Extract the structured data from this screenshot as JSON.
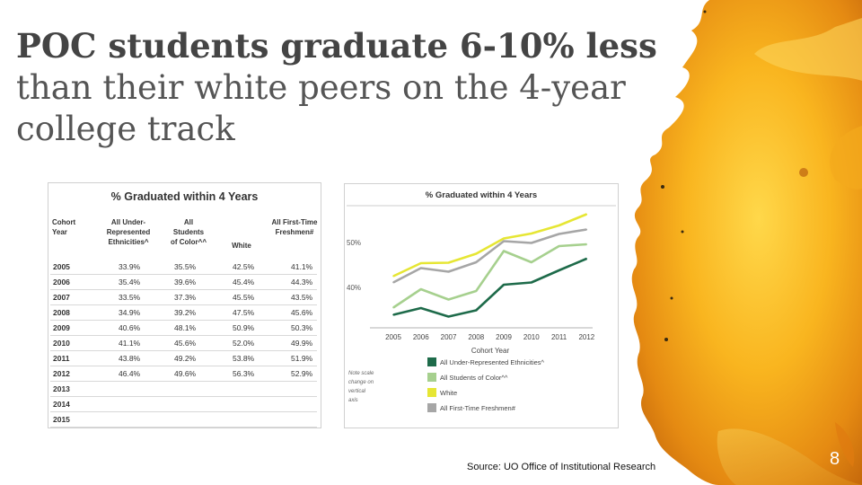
{
  "slide": {
    "title_bold": "POC students graduate 6-10% less",
    "title_rest": " than their white peers on the 4-year college track",
    "source": "Source: UO Office of Institutional Research",
    "page_number": "8"
  },
  "table": {
    "title": "% Graduated within 4 Years",
    "headers": [
      "Cohort Year",
      "All Under-Represented Ethnicities^",
      "All Students of Color^^",
      "White",
      "All First-Time Freshmen#"
    ],
    "rows": [
      [
        "2005",
        "33.9%",
        "35.5%",
        "42.5%",
        "41.1%"
      ],
      [
        "2006",
        "35.4%",
        "39.6%",
        "45.4%",
        "44.3%"
      ],
      [
        "2007",
        "33.5%",
        "37.3%",
        "45.5%",
        "43.5%"
      ],
      [
        "2008",
        "34.9%",
        "39.2%",
        "47.5%",
        "45.6%"
      ],
      [
        "2009",
        "40.6%",
        "48.1%",
        "50.9%",
        "50.3%"
      ],
      [
        "2010",
        "41.1%",
        "45.6%",
        "52.0%",
        "49.9%"
      ],
      [
        "2011",
        "43.8%",
        "49.2%",
        "53.8%",
        "51.9%"
      ],
      [
        "2012",
        "46.4%",
        "49.6%",
        "56.3%",
        "52.9%"
      ],
      [
        "2013",
        "",
        "",
        "",
        ""
      ],
      [
        "2014",
        "",
        "",
        "",
        ""
      ],
      [
        "2015",
        "",
        "",
        "",
        ""
      ]
    ]
  },
  "chart_data": {
    "type": "line",
    "title": "% Graduated within 4 Years",
    "xlabel": "Cohort Year",
    "ylabel": "",
    "x": [
      "2005",
      "2006",
      "2007",
      "2008",
      "2009",
      "2010",
      "2011",
      "2012"
    ],
    "y_ticks": [
      "40%",
      "50%"
    ],
    "ylim": [
      31,
      57
    ],
    "note": "Note scale change on vertical axis",
    "grid": false,
    "legend_position": "bottom",
    "series": [
      {
        "name": "All Under-Represented Ethnicities^",
        "color": "#1e6b4a",
        "values": [
          33.9,
          35.4,
          33.5,
          34.9,
          40.6,
          41.1,
          43.8,
          46.4
        ]
      },
      {
        "name": "All Students of Color^^",
        "color": "#a6d08e",
        "values": [
          35.5,
          39.6,
          37.3,
          39.2,
          48.1,
          45.6,
          49.2,
          49.6
        ]
      },
      {
        "name": "White",
        "color": "#e6e634",
        "values": [
          42.5,
          45.4,
          45.5,
          47.5,
          50.9,
          52.0,
          53.8,
          56.3
        ]
      },
      {
        "name": "All First-Time Freshmen#",
        "color": "#a6a6a6",
        "values": [
          41.1,
          44.3,
          43.5,
          45.6,
          50.3,
          49.9,
          51.9,
          52.9
        ]
      }
    ]
  }
}
